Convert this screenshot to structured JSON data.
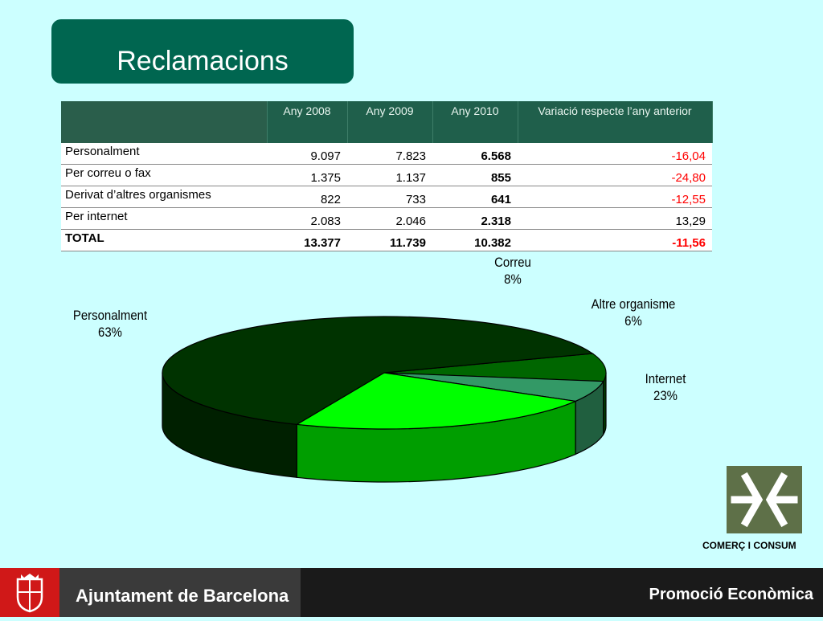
{
  "title": "Reclamacions",
  "table": {
    "headers": [
      "Any 2008",
      "Any 2009",
      "Any 2010",
      "Variació respecte l’any anterior"
    ],
    "rows": [
      {
        "label": "Personalment",
        "y2008": "9.097",
        "y2009": "7.823",
        "y2010": "6.568",
        "variation": "-16,04"
      },
      {
        "label": "Per correu o fax",
        "y2008": "1.375",
        "y2009": "1.137",
        "y2010": "855",
        "variation": "-24,80"
      },
      {
        "label": "Derivat d’altres organismes",
        "y2008": "822",
        "y2009": "733",
        "y2010": "641",
        "variation": "-12,55"
      },
      {
        "label": "Per internet",
        "y2008": "2.083",
        "y2009": "2.046",
        "y2010": "2.318",
        "variation": "13,29"
      }
    ],
    "total": {
      "label": "TOTAL",
      "y2008": "13.377",
      "y2009": "11.739",
      "y2010": "10.382",
      "variation": "-11,56"
    }
  },
  "chart_data": {
    "type": "pie",
    "title": "",
    "slices": [
      {
        "name": "Personalment",
        "value": 63,
        "label": "63%",
        "color": "#003300"
      },
      {
        "name": "Correu",
        "value": 8,
        "label": "8%",
        "color": "#006600"
      },
      {
        "name": "Altre organisme",
        "value": 6,
        "label": "6%",
        "color": "#339966"
      },
      {
        "name": "Internet",
        "value": 23,
        "label": "23%",
        "color": "#00ff00"
      }
    ]
  },
  "colors": {
    "background": "#ccffff",
    "title_box": "#006650",
    "negative": "#ff0000",
    "footer": "#1a1a1a",
    "footer_shield": "#d01818"
  },
  "brand": {
    "cc_caption": "COMERÇ I CONSUM",
    "cc_logo_icon": "comerc-i-consum-logo-icon",
    "footer_left": "Ajuntament de Barcelona",
    "footer_left_icon": "barcelona-shield-icon",
    "footer_right": "Promoció Econòmica"
  }
}
